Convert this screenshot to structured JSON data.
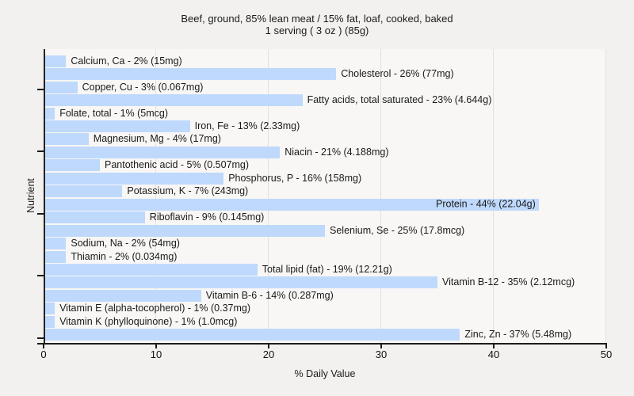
{
  "title": {
    "line1": "Beef, ground, 85% lean meat / 15% fat, loaf, cooked, baked",
    "line2": "1 serving ( 3 oz ) (85g)"
  },
  "chart_data": {
    "type": "bar",
    "orientation": "horizontal",
    "title": "Beef, ground, 85% lean meat / 15% fat, loaf, cooked, baked 1 serving ( 3 oz ) (85g)",
    "xlabel": "% Daily Value",
    "ylabel": "Nutrient",
    "xlim": [
      0,
      50
    ],
    "x_ticks": [
      "0",
      "10",
      "20",
      "30",
      "40",
      "50"
    ],
    "grid": "vertical",
    "legend": "none",
    "bar_color": "#bed9fc",
    "plot_bg": "#f8f7f5",
    "page_bg": "#f2f1ef",
    "bars": [
      {
        "name": "Calcium, Ca",
        "pct": 2,
        "amount": "15mg",
        "label": "Calcium, Ca - 2% (15mg)"
      },
      {
        "name": "Cholesterol",
        "pct": 26,
        "amount": "77mg",
        "label": "Cholesterol - 26% (77mg)"
      },
      {
        "name": "Copper, Cu",
        "pct": 3,
        "amount": "0.067mg",
        "label": "Copper, Cu - 3% (0.067mg)"
      },
      {
        "name": "Fatty acids, total saturated",
        "pct": 23,
        "amount": "4.644g",
        "label": "Fatty acids, total saturated - 23% (4.644g)"
      },
      {
        "name": "Folate, total",
        "pct": 1,
        "amount": "5mcg",
        "label": "Folate, total - 1% (5mcg)"
      },
      {
        "name": "Iron, Fe",
        "pct": 13,
        "amount": "2.33mg",
        "label": "Iron, Fe - 13% (2.33mg)"
      },
      {
        "name": "Magnesium, Mg",
        "pct": 4,
        "amount": "17mg",
        "label": "Magnesium, Mg - 4% (17mg)"
      },
      {
        "name": "Niacin",
        "pct": 21,
        "amount": "4.188mg",
        "label": "Niacin - 21% (4.188mg)"
      },
      {
        "name": "Pantothenic acid",
        "pct": 5,
        "amount": "0.507mg",
        "label": "Pantothenic acid - 5% (0.507mg)"
      },
      {
        "name": "Phosphorus, P",
        "pct": 16,
        "amount": "158mg",
        "label": "Phosphorus, P - 16% (158mg)"
      },
      {
        "name": "Potassium, K",
        "pct": 7,
        "amount": "243mg",
        "label": "Potassium, K - 7% (243mg)"
      },
      {
        "name": "Protein",
        "pct": 44,
        "amount": "22.04g",
        "label": "Protein - 44% (22.04g)"
      },
      {
        "name": "Riboflavin",
        "pct": 9,
        "amount": "0.145mg",
        "label": "Riboflavin - 9% (0.145mg)"
      },
      {
        "name": "Selenium, Se",
        "pct": 25,
        "amount": "17.8mcg",
        "label": "Selenium, Se - 25% (17.8mcg)"
      },
      {
        "name": "Sodium, Na",
        "pct": 2,
        "amount": "54mg",
        "label": "Sodium, Na - 2% (54mg)"
      },
      {
        "name": "Thiamin",
        "pct": 2,
        "amount": "0.034mg",
        "label": "Thiamin - 2% (0.034mg)"
      },
      {
        "name": "Total lipid (fat)",
        "pct": 19,
        "amount": "12.21g",
        "label": "Total lipid (fat) - 19% (12.21g)"
      },
      {
        "name": "Vitamin B-12",
        "pct": 35,
        "amount": "2.12mcg",
        "label": "Vitamin B-12 - 35% (2.12mcg)"
      },
      {
        "name": "Vitamin B-6",
        "pct": 14,
        "amount": "0.287mg",
        "label": "Vitamin B-6 - 14% (0.287mg)"
      },
      {
        "name": "Vitamin E (alpha-tocopherol)",
        "pct": 1,
        "amount": "0.37mg",
        "label": "Vitamin E (alpha-tocopherol) - 1% (0.37mg)"
      },
      {
        "name": "Vitamin K (phylloquinone)",
        "pct": 1,
        "amount": "1.0mcg",
        "label": "Vitamin K (phylloquinone) - 1% (1.0mcg)"
      },
      {
        "name": "Zinc, Zn",
        "pct": 37,
        "amount": "5.48mg",
        "label": "Zinc, Zn - 37% (5.48mg)"
      }
    ]
  }
}
